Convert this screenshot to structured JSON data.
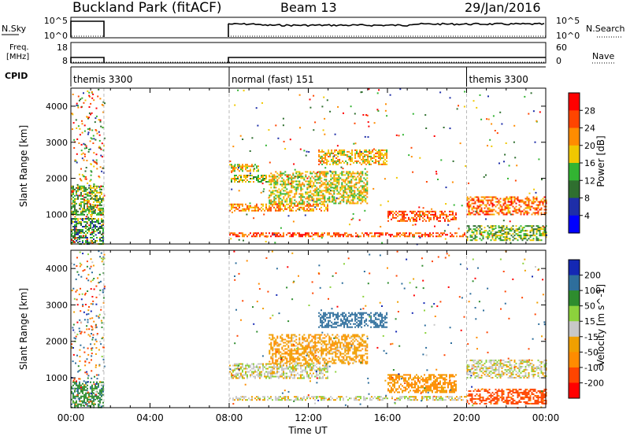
{
  "header": {
    "radar": "Buckland Park (fitACF)",
    "beam": "Beam 13",
    "date": "29/Jan/2016"
  },
  "noise_panel": {
    "left_label": "N.Sky",
    "left_ticks": [
      "10^5",
      "10^0"
    ],
    "right_label": "N.Search",
    "right_ticks": [
      "10^5",
      "10^0"
    ]
  },
  "freq_panel": {
    "left_label_lines": [
      "Freq.",
      "[MHz]"
    ],
    "left_ticks": [
      "18",
      "8"
    ],
    "right_label": "Nave",
    "right_ticks": [
      "60",
      "0"
    ]
  },
  "cpid": {
    "label": "CPID",
    "segments": [
      {
        "name": "themis 3300",
        "start_h": 0.0,
        "end_h": 1.67
      },
      {
        "name": "normal (fast) 151",
        "start_h": 8.0,
        "end_h": 20.0
      },
      {
        "name": "themis 3300",
        "start_h": 20.0,
        "end_h": 24.0
      }
    ]
  },
  "power_colorbar": {
    "label": "Power [dB]",
    "ticks": [
      "28",
      "24",
      "20",
      "16",
      "12",
      "8",
      "4"
    ],
    "colors": [
      "#ff0000",
      "#ff4500",
      "#ff8c00",
      "#f0c800",
      "#32b432",
      "#2f6f2f",
      "#1e2ea8",
      "#0000ff"
    ]
  },
  "velocity_colorbar": {
    "label": "Velocity [m s^-1]",
    "ticks": [
      "200",
      "100",
      "50",
      "15",
      "-15",
      "-50",
      "-100",
      "-200"
    ],
    "colors": [
      "#1428b4",
      "#2e6e9c",
      "#2e8c2e",
      "#8cd23c",
      "#c8c8c8",
      "#f0a000",
      "#ff8c00",
      "#ff4500",
      "#ff0000"
    ]
  },
  "x_axis": {
    "label": "Time UT",
    "ticks": [
      "00:00",
      "04:00",
      "08:00",
      "12:00",
      "16:00",
      "20:00",
      "00:00"
    ]
  },
  "y_axis": {
    "label": "Slant Range [km]",
    "ticks": [
      "4000",
      "3000",
      "2000",
      "1000"
    ]
  },
  "chart_data": {
    "type": "heatmap",
    "x_range_hours": [
      0,
      24
    ],
    "y_range_km": [
      180,
      4500
    ],
    "data_intervals_hours": [
      [
        0.0,
        1.67
      ],
      [
        8.0,
        24.0
      ]
    ],
    "power_regions": [
      {
        "t0": 0.0,
        "t1": 1.6,
        "r0": 200,
        "r1": 900,
        "db": 12
      },
      {
        "t0": 0.0,
        "t1": 1.6,
        "r0": 1000,
        "r1": 1800,
        "db": 14
      },
      {
        "t0": 8.0,
        "t1": 9.5,
        "r0": 2200,
        "r1": 2400,
        "db": 20
      },
      {
        "t0": 8.0,
        "t1": 10.0,
        "r0": 1900,
        "r1": 2100,
        "db": 16
      },
      {
        "t0": 8.0,
        "t1": 13.0,
        "r0": 1100,
        "r1": 1300,
        "db": 22
      },
      {
        "t0": 8.0,
        "t1": 20.0,
        "r0": 400,
        "r1": 500,
        "db": 26
      },
      {
        "t0": 10.0,
        "t1": 15.0,
        "r0": 1300,
        "r1": 2200,
        "db": 18
      },
      {
        "t0": 12.5,
        "t1": 16.0,
        "r0": 2400,
        "r1": 2800,
        "db": 20
      },
      {
        "t0": 16.0,
        "t1": 19.5,
        "r0": 800,
        "r1": 1100,
        "db": 26
      },
      {
        "t0": 20.0,
        "t1": 24.0,
        "r0": 1000,
        "r1": 1500,
        "db": 24
      },
      {
        "t0": 20.0,
        "t1": 24.0,
        "r0": 300,
        "r1": 700,
        "db": 14
      }
    ],
    "velocity_regions": [
      {
        "t0": 0.0,
        "t1": 1.6,
        "r0": 200,
        "r1": 900,
        "v": 80
      },
      {
        "t0": 8.0,
        "t1": 20.0,
        "r0": 400,
        "r1": 500,
        "v": 0
      },
      {
        "t0": 8.0,
        "t1": 13.0,
        "r0": 1000,
        "r1": 1400,
        "v": 0
      },
      {
        "t0": 10.0,
        "t1": 15.0,
        "r0": 1400,
        "r1": 2200,
        "v": -40
      },
      {
        "t0": 12.5,
        "t1": 16.0,
        "r0": 2400,
        "r1": 2800,
        "v": 150
      },
      {
        "t0": 16.0,
        "t1": 19.5,
        "r0": 600,
        "r1": 1100,
        "v": -60
      },
      {
        "t0": 20.0,
        "t1": 24.0,
        "r0": 1000,
        "r1": 1500,
        "v": 0
      },
      {
        "t0": 20.0,
        "t1": 24.0,
        "r0": 300,
        "r1": 700,
        "v": -120
      }
    ]
  }
}
